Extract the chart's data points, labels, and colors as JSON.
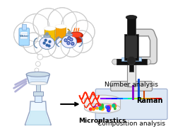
{
  "background_color": "#ffffff",
  "text_microplastics": "Microplastics",
  "text_number": "Number analysis",
  "text_composition": "Composition analysis",
  "text_raman": "Raman",
  "wave_color": "#ff2200",
  "raman_box_color": "#dde8f5",
  "raman_box_edge": "#99aacc",
  "font_size_labels": 6.5
}
